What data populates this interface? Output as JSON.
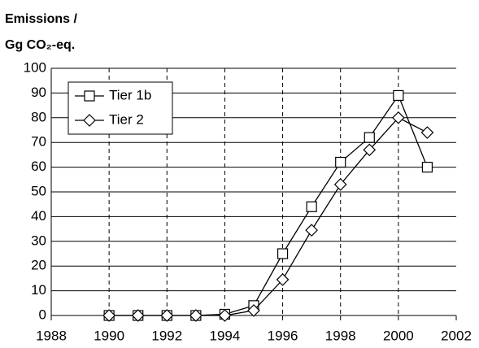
{
  "chart_data": {
    "type": "line",
    "title_lines": [
      "Emissions /",
      "Gg CO₂-eq."
    ],
    "x": [
      1990,
      1991,
      1992,
      1993,
      1994,
      1995,
      1996,
      1997,
      1998,
      1999,
      2000,
      2001
    ],
    "series": [
      {
        "name": "Tier 1b",
        "color": "#000000",
        "marker": "square",
        "values": [
          0,
          0,
          0,
          0,
          0.5,
          4,
          25,
          44,
          62,
          72,
          89,
          60
        ]
      },
      {
        "name": "Tier 2",
        "color": "#000000",
        "marker": "diamond",
        "values": [
          0,
          0,
          0,
          0,
          0,
          2,
          14.5,
          34.5,
          53,
          67,
          80,
          74
        ]
      }
    ],
    "xlim": [
      1988,
      2002
    ],
    "xticks": [
      1988,
      1990,
      1992,
      1994,
      1996,
      1998,
      2000,
      2002
    ],
    "ylim": [
      0,
      100
    ],
    "yticks": [
      0,
      10,
      20,
      30,
      40,
      50,
      60,
      70,
      80,
      90,
      100
    ],
    "grid": true,
    "legend": "upper left"
  }
}
